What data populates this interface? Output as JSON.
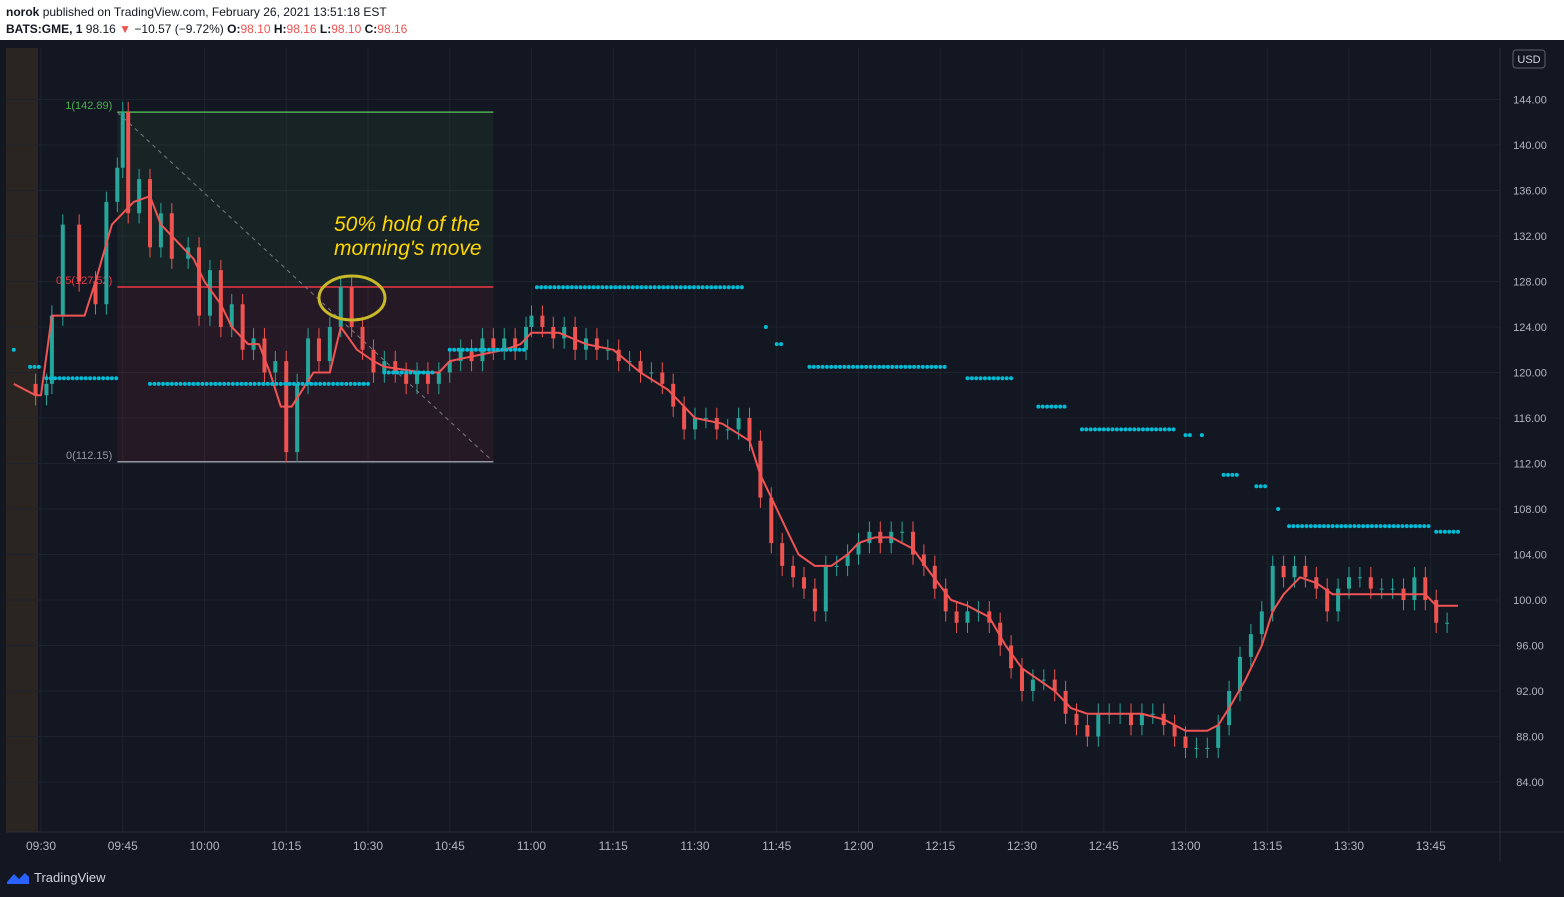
{
  "header": {
    "author": "norok",
    "published": "published on TradingView.com, February 26, 2021 13:51:18 EST",
    "symbol": "BATS:GME, 1",
    "last": "98.16",
    "change": "−10.57 (−9.72%)",
    "o_label": "O:",
    "o_value": "98.10",
    "h_label": "H:",
    "h_value": "98.16",
    "l_label": "L:",
    "l_value": "98.10",
    "c_label": "C:",
    "c_value": "98.16"
  },
  "footer": {
    "brand": "TradingView"
  },
  "colors": {
    "background": "#131722",
    "up": "#26a69a",
    "down": "#ef5350",
    "ma_line": "#f05454",
    "dots": "#00bcd4",
    "fib_top": "#4caf50",
    "fib_mid": "#f23645",
    "fib_bottom": "#9598a1",
    "annotation": "#ffd600",
    "premarket": "#2a2520"
  },
  "chart_data": {
    "type": "candlestick",
    "currency": "USD",
    "y_ticks": [
      84,
      88,
      92,
      96,
      100,
      104,
      108,
      112,
      116,
      120,
      124,
      128,
      132,
      136,
      140,
      144
    ],
    "x_ticks": [
      "09:30",
      "09:45",
      "10:00",
      "10:15",
      "10:30",
      "10:45",
      "11:00",
      "11:15",
      "11:30",
      "11:45",
      "12:00",
      "12:15",
      "12:30",
      "12:45",
      "13:00",
      "13:15",
      "13:30",
      "13:45"
    ],
    "fib_levels": [
      {
        "label": "1(142.89)",
        "value": 142.89
      },
      {
        "label": "0.5(127.52)",
        "value": 127.52
      },
      {
        "label": "0(112.15)",
        "value": 112.15
      }
    ],
    "annotation": {
      "line1": "50% hold of the",
      "line2": "morning's move"
    },
    "price_path": [
      [
        "09:25",
        119
      ],
      [
        "09:29",
        118
      ],
      [
        "09:31",
        119
      ],
      [
        "09:32",
        125
      ],
      [
        "09:34",
        133
      ],
      [
        "09:37",
        128
      ],
      [
        "09:40",
        126
      ],
      [
        "09:42",
        135
      ],
      [
        "09:44",
        138
      ],
      [
        "09:45",
        142.9
      ],
      [
        "09:46",
        134
      ],
      [
        "09:48",
        137
      ],
      [
        "09:50",
        131
      ],
      [
        "09:52",
        134
      ],
      [
        "09:54",
        130
      ],
      [
        "09:57",
        131
      ],
      [
        "09:59",
        125
      ],
      [
        "10:01",
        129
      ],
      [
        "10:03",
        124
      ],
      [
        "10:05",
        126
      ],
      [
        "10:07",
        122
      ],
      [
        "10:09",
        123
      ],
      [
        "10:11",
        120
      ],
      [
        "10:13",
        121
      ],
      [
        "10:15",
        113
      ],
      [
        "10:17",
        119
      ],
      [
        "10:19",
        123
      ],
      [
        "10:21",
        121
      ],
      [
        "10:23",
        124
      ],
      [
        "10:25",
        127.5
      ],
      [
        "10:27",
        124
      ],
      [
        "10:29",
        122
      ],
      [
        "10:31",
        120
      ],
      [
        "10:33",
        121
      ],
      [
        "10:35",
        120
      ],
      [
        "10:37",
        119
      ],
      [
        "10:39",
        120
      ],
      [
        "10:41",
        119
      ],
      [
        "10:43",
        120
      ],
      [
        "10:45",
        121
      ],
      [
        "10:47",
        122
      ],
      [
        "10:49",
        121
      ],
      [
        "10:51",
        123
      ],
      [
        "10:53",
        122
      ],
      [
        "10:55",
        123
      ],
      [
        "10:57",
        122
      ],
      [
        "10:59",
        124
      ],
      [
        "11:00",
        125
      ],
      [
        "11:02",
        124
      ],
      [
        "11:04",
        123
      ],
      [
        "11:06",
        124
      ],
      [
        "11:08",
        122
      ],
      [
        "11:10",
        123
      ],
      [
        "11:12",
        122
      ],
      [
        "11:14",
        122
      ],
      [
        "11:16",
        121
      ],
      [
        "11:18",
        121
      ],
      [
        "11:20",
        120
      ],
      [
        "11:22",
        120
      ],
      [
        "11:24",
        119
      ],
      [
        "11:26",
        117
      ],
      [
        "11:28",
        115
      ],
      [
        "11:30",
        116
      ],
      [
        "11:32",
        116
      ],
      [
        "11:34",
        115
      ],
      [
        "11:36",
        115
      ],
      [
        "11:38",
        116
      ],
      [
        "11:40",
        114
      ],
      [
        "11:42",
        109
      ],
      [
        "11:44",
        105
      ],
      [
        "11:46",
        103
      ],
      [
        "11:48",
        102
      ],
      [
        "11:50",
        101
      ],
      [
        "11:52",
        99
      ],
      [
        "11:54",
        103
      ],
      [
        "11:56",
        103
      ],
      [
        "11:58",
        104
      ],
      [
        "12:00",
        105
      ],
      [
        "12:02",
        106
      ],
      [
        "12:04",
        105
      ],
      [
        "12:06",
        106
      ],
      [
        "12:08",
        106
      ],
      [
        "12:10",
        104
      ],
      [
        "12:12",
        103
      ],
      [
        "12:14",
        101
      ],
      [
        "12:16",
        99
      ],
      [
        "12:18",
        98
      ],
      [
        "12:20",
        99
      ],
      [
        "12:22",
        99
      ],
      [
        "12:24",
        98
      ],
      [
        "12:26",
        96
      ],
      [
        "12:28",
        94
      ],
      [
        "12:30",
        92
      ],
      [
        "12:32",
        93
      ],
      [
        "12:34",
        93
      ],
      [
        "12:36",
        92
      ],
      [
        "12:38",
        90
      ],
      [
        "12:40",
        89
      ],
      [
        "12:42",
        88
      ],
      [
        "12:44",
        90
      ],
      [
        "12:46",
        90
      ],
      [
        "12:48",
        90
      ],
      [
        "12:50",
        89
      ],
      [
        "12:52",
        90
      ],
      [
        "12:54",
        90
      ],
      [
        "12:56",
        89
      ],
      [
        "12:58",
        88
      ],
      [
        "13:00",
        87
      ],
      [
        "13:02",
        87
      ],
      [
        "13:04",
        87
      ],
      [
        "13:06",
        89
      ],
      [
        "13:08",
        92
      ],
      [
        "13:10",
        95
      ],
      [
        "13:12",
        97
      ],
      [
        "13:14",
        99
      ],
      [
        "13:16",
        103
      ],
      [
        "13:18",
        102
      ],
      [
        "13:20",
        103
      ],
      [
        "13:22",
        102
      ],
      [
        "13:24",
        101
      ],
      [
        "13:26",
        99
      ],
      [
        "13:28",
        101
      ],
      [
        "13:30",
        102
      ],
      [
        "13:32",
        102
      ],
      [
        "13:34",
        101
      ],
      [
        "13:36",
        101
      ],
      [
        "13:38",
        101
      ],
      [
        "13:40",
        100
      ],
      [
        "13:42",
        102
      ],
      [
        "13:44",
        100
      ],
      [
        "13:46",
        98
      ],
      [
        "13:48",
        98
      ]
    ],
    "ma_path": [
      [
        "09:25",
        119
      ],
      [
        "09:29",
        118
      ],
      [
        "09:30",
        118
      ],
      [
        "09:32",
        125
      ],
      [
        "09:38",
        125
      ],
      [
        "09:40",
        128
      ],
      [
        "09:43",
        133
      ],
      [
        "09:47",
        135
      ],
      [
        "09:50",
        135.5
      ],
      [
        "09:52",
        133
      ],
      [
        "09:54",
        132
      ],
      [
        "09:56",
        131
      ],
      [
        "09:58",
        130
      ],
      [
        "10:00",
        128
      ],
      [
        "10:03",
        126
      ],
      [
        "10:05",
        124
      ],
      [
        "10:08",
        122.5
      ],
      [
        "10:10",
        122.5
      ],
      [
        "10:12",
        120
      ],
      [
        "10:14",
        117
      ],
      [
        "10:16",
        117
      ],
      [
        "10:20",
        120
      ],
      [
        "10:23",
        120
      ],
      [
        "10:25",
        124
      ],
      [
        "10:28",
        122
      ],
      [
        "10:31",
        121
      ],
      [
        "10:33",
        120.5
      ],
      [
        "10:40",
        120
      ],
      [
        "10:43",
        120
      ],
      [
        "10:45",
        121
      ],
      [
        "10:50",
        121.5
      ],
      [
        "10:55",
        122
      ],
      [
        "10:58",
        122.5
      ],
      [
        "11:00",
        123.5
      ],
      [
        "11:05",
        123.5
      ],
      [
        "11:10",
        122.5
      ],
      [
        "11:15",
        122
      ],
      [
        "11:20",
        120
      ],
      [
        "11:25",
        118.5
      ],
      [
        "11:28",
        117
      ],
      [
        "11:30",
        116
      ],
      [
        "11:35",
        115.5
      ],
      [
        "11:40",
        114
      ],
      [
        "11:42",
        111
      ],
      [
        "11:45",
        108
      ],
      [
        "11:47",
        106
      ],
      [
        "11:49",
        104
      ],
      [
        "11:52",
        103
      ],
      [
        "11:55",
        103
      ],
      [
        "11:58",
        104
      ],
      [
        "12:00",
        105
      ],
      [
        "12:03",
        105.5
      ],
      [
        "12:06",
        105.5
      ],
      [
        "12:10",
        104.5
      ],
      [
        "12:13",
        102.5
      ],
      [
        "12:17",
        100
      ],
      [
        "12:20",
        99.5
      ],
      [
        "12:24",
        98.5
      ],
      [
        "12:27",
        96
      ],
      [
        "12:30",
        94
      ],
      [
        "12:33",
        93
      ],
      [
        "12:36",
        92
      ],
      [
        "12:39",
        90.5
      ],
      [
        "12:42",
        90
      ],
      [
        "12:46",
        90
      ],
      [
        "12:52",
        90
      ],
      [
        "12:56",
        89.5
      ],
      [
        "13:00",
        88.5
      ],
      [
        "13:04",
        88.5
      ],
      [
        "13:06",
        89
      ],
      [
        "13:08",
        90.5
      ],
      [
        "13:11",
        93
      ],
      [
        "13:14",
        96
      ],
      [
        "13:16",
        99
      ],
      [
        "13:18",
        100.5
      ],
      [
        "13:21",
        102
      ],
      [
        "13:24",
        101.5
      ],
      [
        "13:27",
        100.5
      ],
      [
        "13:30",
        100.5
      ],
      [
        "13:35",
        100.5
      ],
      [
        "13:40",
        100.5
      ],
      [
        "13:44",
        100.5
      ],
      [
        "13:46",
        99.5
      ],
      [
        "13:50",
        99.5
      ]
    ],
    "dot_segments": [
      {
        "from": "09:25",
        "to": "09:25",
        "value": 122
      },
      {
        "from": "09:28",
        "to": "09:30",
        "value": 120.5
      },
      {
        "from": "09:31",
        "to": "09:44",
        "value": 119.5
      },
      {
        "from": "09:50",
        "to": "10:30",
        "value": 119
      },
      {
        "from": "10:33",
        "to": "10:42",
        "value": 120
      },
      {
        "from": "10:45",
        "to": "10:59",
        "value": 122
      },
      {
        "from": "11:01",
        "to": "11:39",
        "value": 127.5
      },
      {
        "from": "11:43",
        "to": "11:43",
        "value": 124
      },
      {
        "from": "11:45",
        "to": "11:46",
        "value": 122.5
      },
      {
        "from": "11:51",
        "to": "12:16",
        "value": 120.5
      },
      {
        "from": "12:20",
        "to": "12:28",
        "value": 119.5
      },
      {
        "from": "12:33",
        "to": "12:38",
        "value": 117
      },
      {
        "from": "12:41",
        "to": "12:58",
        "value": 115
      },
      {
        "from": "13:00",
        "to": "13:01",
        "value": 114.5
      },
      {
        "from": "13:03",
        "to": "13:03",
        "value": 114.5
      },
      {
        "from": "13:07",
        "to": "13:10",
        "value": 111
      },
      {
        "from": "13:13",
        "to": "13:15",
        "value": 110
      },
      {
        "from": "13:17",
        "to": "13:17",
        "value": 108
      },
      {
        "from": "13:19",
        "to": "13:45",
        "value": 106.5
      },
      {
        "from": "13:46",
        "to": "13:50",
        "value": 106
      }
    ]
  }
}
